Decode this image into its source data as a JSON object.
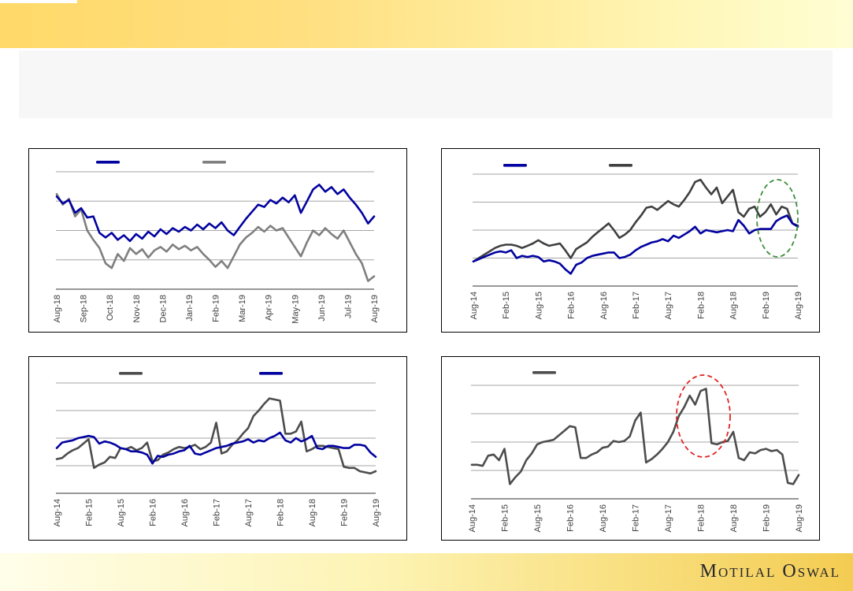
{
  "header": {
    "title": ""
  },
  "footer": {
    "brand": "Motilal Oswal"
  },
  "colors": {
    "accent_navy": "#0202A0",
    "gray_line_light": "#7F7F7F",
    "gray_line_dark": "#4D4D4D",
    "gridline": "#A6A6A6",
    "axis": "#595959",
    "annotation_green": "#3A8E3A",
    "annotation_red": "#E32222",
    "banner_gold": "#FFD969",
    "banner_pale": "#FFFDD4"
  },
  "chart_data": [
    {
      "id": "top-left",
      "type": "line",
      "title": "",
      "xlabel": "",
      "ylabel": "",
      "x_labels": [
        "Aug-18",
        "Sep-18",
        "Oct-18",
        "Nov-18",
        "Dec-18",
        "Jan-19",
        "Feb-19",
        "Mar-19",
        "Apr-19",
        "May-19",
        "Jun-19",
        "Jul-19",
        "Aug-19"
      ],
      "y_axis_labels_visible": false,
      "ylim": [
        0,
        100
      ],
      "gridlines": 5,
      "legend": [
        {
          "label": "",
          "color": "#0202A0"
        },
        {
          "label": "",
          "color": "#7F7F7F"
        }
      ],
      "series": [
        {
          "name": "gray",
          "legend_label": "",
          "color": "#7F7F7F",
          "values": [
            81,
            72,
            77,
            62,
            68,
            50,
            42,
            35,
            22,
            18,
            30,
            24,
            35,
            30,
            34,
            27,
            33,
            36,
            32,
            38,
            34,
            37,
            33,
            36,
            30,
            25,
            19,
            24,
            18,
            28,
            38,
            44,
            48,
            53,
            49,
            54,
            50,
            52,
            44,
            36,
            28,
            40,
            50,
            46,
            52,
            47,
            43,
            50,
            40,
            30,
            22,
            7,
            11
          ]
        },
        {
          "name": "blue",
          "legend_label": "",
          "color": "#0202A0",
          "values": [
            79,
            73,
            76,
            65,
            69,
            61,
            62,
            48,
            44,
            48,
            42,
            46,
            41,
            47,
            43,
            49,
            45,
            51,
            47,
            52,
            49,
            53,
            50,
            55,
            51,
            56,
            52,
            57,
            50,
            46,
            53,
            60,
            66,
            72,
            70,
            76,
            73,
            78,
            74,
            80,
            65,
            75,
            85,
            89,
            83,
            87,
            81,
            85,
            78,
            72,
            65,
            56,
            62
          ]
        }
      ],
      "annotation": null
    },
    {
      "id": "top-right",
      "type": "line",
      "title": "",
      "xlabel": "",
      "ylabel": "",
      "x_labels": [
        "Aug-14",
        "Feb-15",
        "Aug-15",
        "Feb-16",
        "Aug-16",
        "Feb-17",
        "Aug-17",
        "Feb-18",
        "Aug-18",
        "Feb-19",
        "Aug-19"
      ],
      "y_axis_labels_visible": false,
      "ylim": [
        0,
        100
      ],
      "gridlines": 5,
      "legend": [
        {
          "label": "",
          "color": "#0202A0"
        },
        {
          "label": "",
          "color": "#404040"
        }
      ],
      "series": [
        {
          "name": "gray",
          "legend_label": "",
          "color": "#404040",
          "values": [
            22,
            25,
            28,
            31,
            34,
            36,
            37,
            37,
            36,
            34,
            36,
            38,
            41,
            38,
            36,
            37,
            38,
            32,
            25,
            33,
            36,
            39,
            44,
            48,
            52,
            56,
            50,
            43,
            46,
            50,
            57,
            63,
            70,
            71,
            68,
            72,
            76,
            73,
            71,
            77,
            84,
            93,
            95,
            88,
            82,
            88,
            74,
            80,
            86,
            66,
            62,
            69,
            71,
            62,
            66,
            73,
            64,
            71,
            69,
            56,
            54
          ]
        },
        {
          "name": "blue",
          "legend_label": "",
          "color": "#0202A0",
          "values": [
            22,
            24,
            26,
            28,
            30,
            31,
            30,
            32,
            25,
            27,
            26,
            27,
            26,
            22,
            23,
            22,
            20,
            15,
            11,
            19,
            21,
            25,
            27,
            28,
            29,
            30,
            30,
            25,
            26,
            28,
            32,
            35,
            37,
            39,
            40,
            42,
            40,
            45,
            43,
            46,
            49,
            53,
            47,
            50,
            49,
            48,
            49,
            50,
            49,
            59,
            54,
            47,
            50,
            51,
            51,
            51,
            58,
            61,
            63,
            56,
            53
          ]
        }
      ],
      "annotation": {
        "shape": "dashed-ellipse",
        "color": "#3A8E3A",
        "highlights_x_range": [
          "Feb-19",
          "Aug-19"
        ]
      }
    },
    {
      "id": "bottom-left",
      "type": "line",
      "title": "",
      "xlabel": "",
      "ylabel": "",
      "x_labels": [
        "Aug-14",
        "Feb-15",
        "Aug-15",
        "Feb-16",
        "Aug-16",
        "Feb-17",
        "Aug-17",
        "Feb-18",
        "Aug-18",
        "Feb-19",
        "Aug-19"
      ],
      "y_axis_labels_visible": false,
      "ylim": [
        0,
        100
      ],
      "gridlines": 5,
      "legend": [
        {
          "label": "",
          "color": "#4D4D4D"
        },
        {
          "label": "",
          "color": "#0202A0"
        }
      ],
      "series": [
        {
          "name": "gray",
          "legend_label": "",
          "color": "#4D4D4D",
          "values": [
            31,
            32,
            36,
            39,
            41,
            45,
            49,
            23,
            26,
            28,
            33,
            32,
            41,
            40,
            42,
            39,
            41,
            46,
            29,
            30,
            35,
            37,
            40,
            42,
            41,
            42,
            44,
            40,
            42,
            46,
            64,
            36,
            38,
            44,
            48,
            54,
            59,
            70,
            75,
            81,
            86,
            85,
            84,
            54,
            54,
            56,
            65,
            38,
            40,
            43,
            43,
            42,
            41,
            40,
            24,
            23,
            23,
            20,
            19,
            18,
            20
          ]
        },
        {
          "name": "blue",
          "legend_label": "",
          "color": "#0202A0",
          "values": [
            41,
            46,
            47,
            48,
            50,
            51,
            52,
            51,
            45,
            47,
            46,
            44,
            41,
            40,
            38,
            38,
            37,
            35,
            27,
            34,
            33,
            35,
            36,
            38,
            39,
            43,
            36,
            35,
            37,
            39,
            41,
            42,
            43,
            45,
            46,
            47,
            49,
            46,
            48,
            47,
            50,
            52,
            55,
            48,
            46,
            50,
            47,
            49,
            52,
            41,
            40,
            43,
            43,
            42,
            41,
            41,
            44,
            44,
            43,
            37,
            33
          ]
        }
      ],
      "annotation": null
    },
    {
      "id": "bottom-right",
      "type": "line",
      "title": "",
      "xlabel": "",
      "ylabel": "",
      "x_labels": [
        "Aug-14",
        "Feb-15",
        "Aug-15",
        "Feb-16",
        "Aug-16",
        "Feb-17",
        "Aug-17",
        "Feb-18",
        "Aug-18",
        "Feb-19",
        "Aug-19"
      ],
      "y_axis_labels_visible": false,
      "ylim": [
        0,
        100
      ],
      "gridlines": 5,
      "legend": [
        {
          "label": "",
          "color": "#4D4D4D"
        }
      ],
      "series": [
        {
          "name": "gray",
          "legend_label": "",
          "color": "#4D4D4D",
          "values": [
            30,
            30,
            29,
            38,
            39,
            34,
            44,
            13,
            19,
            24,
            34,
            40,
            48,
            50,
            51,
            52,
            56,
            60,
            64,
            63,
            36,
            36,
            39,
            41,
            45,
            46,
            51,
            50,
            51,
            55,
            69,
            76,
            32,
            35,
            39,
            44,
            50,
            59,
            73,
            81,
            91,
            83,
            95,
            97,
            49,
            48,
            50,
            51,
            59,
            36,
            34,
            41,
            40,
            43,
            44,
            42,
            43,
            39,
            14,
            13,
            21
          ]
        }
      ],
      "annotation": {
        "shape": "dashed-ellipse",
        "color": "#E32222",
        "highlights_x_range": [
          "Nov-17",
          "May-18"
        ]
      }
    }
  ]
}
